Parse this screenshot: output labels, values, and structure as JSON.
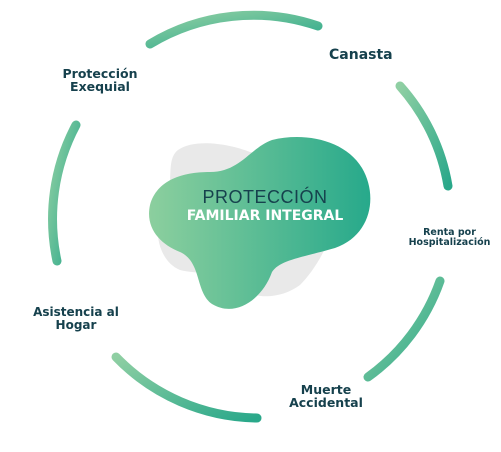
{
  "center": {
    "line1": "PROTECCIÓN",
    "line2": "FAMILIAR INTEGRAL"
  },
  "items": [
    {
      "id": "canasta",
      "lines": [
        "Canasta"
      ]
    },
    {
      "id": "renta",
      "lines": [
        "Renta por",
        "Hospitalización"
      ]
    },
    {
      "id": "muerte",
      "lines": [
        "Muerte",
        "Accidental"
      ]
    },
    {
      "id": "asistencia",
      "lines": [
        "Asistencia al",
        "Hogar"
      ]
    },
    {
      "id": "exequial",
      "lines": [
        "Protección",
        "Exequial"
      ]
    }
  ],
  "colors": {
    "arc_start": "#8fcfa3",
    "arc_end": "#2aa88a",
    "blob_start": "#8ccf9e",
    "blob_end": "#27a98b",
    "shadow": "#e9e9e9",
    "text_dark": "#16414d",
    "text_light": "#ffffff"
  }
}
